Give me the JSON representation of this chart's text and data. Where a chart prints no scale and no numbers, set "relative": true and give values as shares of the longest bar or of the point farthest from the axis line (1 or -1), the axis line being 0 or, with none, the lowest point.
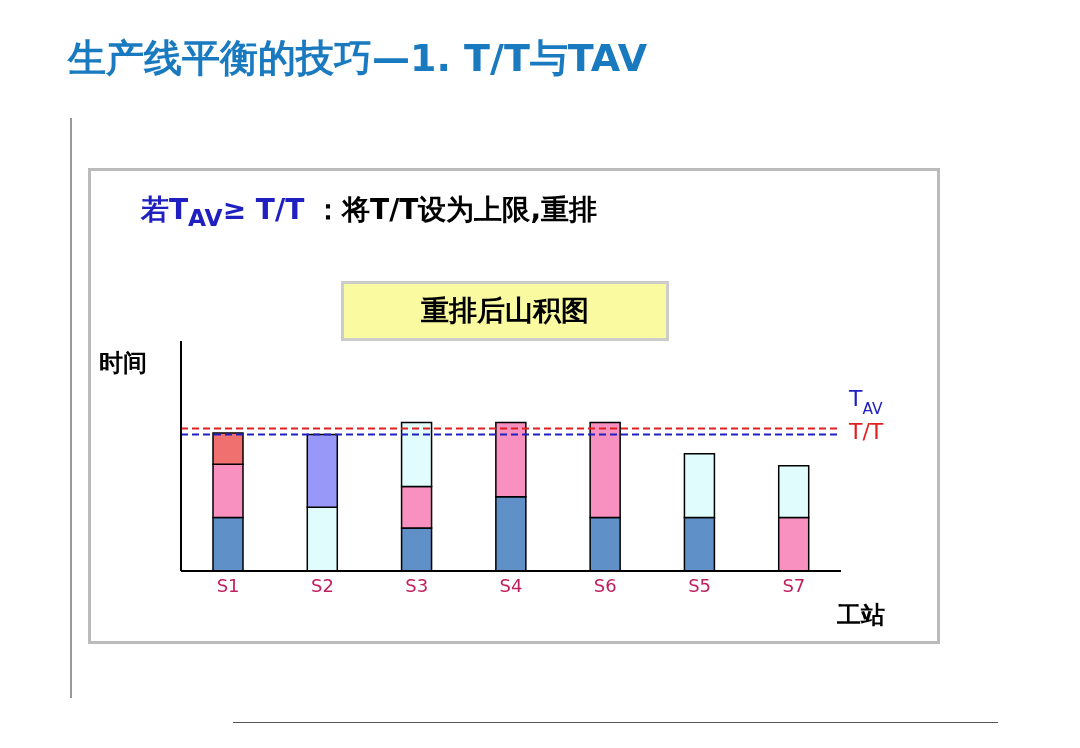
{
  "chart_data": {
    "type": "bar",
    "title": "生产线平衡的技巧—1. T/T与TAV",
    "subtitle": "重排后山积图",
    "xlabel": "工站",
    "ylabel": "时间",
    "annotations": [
      "若T$_{AV}$≥ T/T",
      "：将T/T设为上限,重排"
    ],
    "categories": [
      "S1",
      "S2",
      "S3",
      "S4",
      "S6",
      "S5",
      "S7"
    ],
    "relative": true,
    "stacked": true,
    "series": [
      {
        "colors": [
          "#6090c8",
          "#e0fcfc",
          "#6090c8",
          "#6090c8",
          "#6090c8",
          "#6090c8",
          "#f890c0"
        ],
        "values": [
          0.36,
          0.43,
          0.29,
          0.5,
          0.36,
          0.36,
          0.36
        ]
      },
      {
        "colors": [
          "#f890c0",
          "#9898f8",
          "#f890c0",
          "#f890c0",
          "#f890c0",
          "#e0fcfc",
          "#e0fcfc"
        ],
        "values": [
          0.36,
          0.49,
          0.28,
          0.5,
          0.64,
          0.43,
          0.35
        ]
      },
      {
        "colors": [
          "#f07070",
          null,
          "#e0fcfc",
          null,
          null,
          null,
          null
        ],
        "values": [
          0.21,
          null,
          0.43,
          null,
          null,
          null,
          null
        ]
      }
    ],
    "ref_lines": [
      {
        "axis": "y",
        "value": 0.92,
        "label": "T$_{AV}$",
        "color": "#2020c0",
        "line_style": "dashed"
      },
      {
        "axis": "y",
        "value": 0.96,
        "label": "T/T",
        "color": "#e02020",
        "line_style": "dashed"
      }
    ],
    "grid": false,
    "legend": false
  }
}
